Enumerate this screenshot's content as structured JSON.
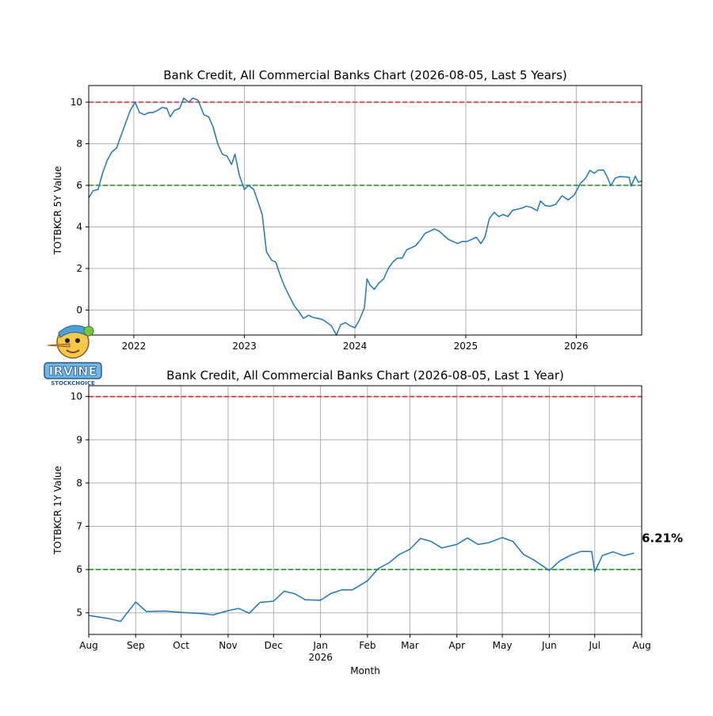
{
  "chart_data": [
    {
      "type": "line",
      "title": "Bank Credit, All Commercial Banks Chart (2026-08-05, Last 5 Years)",
      "xlabel": "",
      "ylabel": "TOTBKCR 5Y Value",
      "ylim": [
        -1.2,
        10.8
      ],
      "xlim": [
        "2021-08-05",
        "2026-08-05"
      ],
      "yticks": [
        0,
        2,
        4,
        6,
        8,
        10
      ],
      "xticks": [
        {
          "date": "2022-01-01",
          "label": "2022"
        },
        {
          "date": "2023-01-01",
          "label": "2023"
        },
        {
          "date": "2024-01-01",
          "label": "2024"
        },
        {
          "date": "2025-01-01",
          "label": "2025"
        },
        {
          "date": "2026-01-01",
          "label": "2026"
        }
      ],
      "grid": true,
      "reference_lines": [
        {
          "y": 10,
          "color": "#d62728",
          "style": "dashed"
        },
        {
          "y": 6,
          "color": "#2a8a2a",
          "style": "dashed"
        }
      ],
      "series": [
        {
          "color": "#1f77b4",
          "points": [
            [
              "2021-08-05",
              5.4
            ],
            [
              "2021-08-20",
              5.75
            ],
            [
              "2021-09-05",
              5.8
            ],
            [
              "2021-09-20",
              6.6
            ],
            [
              "2021-10-05",
              7.2
            ],
            [
              "2021-10-20",
              7.6
            ],
            [
              "2021-11-05",
              7.8
            ],
            [
              "2021-11-20",
              8.4
            ],
            [
              "2021-12-05",
              9.0
            ],
            [
              "2021-12-20",
              9.6
            ],
            [
              "2022-01-05",
              10.0
            ],
            [
              "2022-01-20",
              9.5
            ],
            [
              "2022-02-05",
              9.4
            ],
            [
              "2022-02-20",
              9.5
            ],
            [
              "2022-03-05",
              9.5
            ],
            [
              "2022-03-20",
              9.6
            ],
            [
              "2022-04-05",
              9.75
            ],
            [
              "2022-04-20",
              9.7
            ],
            [
              "2022-05-01",
              9.3
            ],
            [
              "2022-05-15",
              9.6
            ],
            [
              "2022-06-01",
              9.7
            ],
            [
              "2022-06-15",
              10.2
            ],
            [
              "2022-07-01",
              10.0
            ],
            [
              "2022-07-15",
              10.2
            ],
            [
              "2022-08-01",
              10.1
            ],
            [
              "2022-08-20",
              9.4
            ],
            [
              "2022-09-05",
              9.3
            ],
            [
              "2022-09-20",
              8.8
            ],
            [
              "2022-10-05",
              8.0
            ],
            [
              "2022-10-20",
              7.5
            ],
            [
              "2022-11-05",
              7.4
            ],
            [
              "2022-11-20",
              7.0
            ],
            [
              "2022-12-01",
              7.5
            ],
            [
              "2022-12-15",
              6.5
            ],
            [
              "2023-01-01",
              5.8
            ],
            [
              "2023-01-15",
              6.0
            ],
            [
              "2023-02-01",
              5.8
            ],
            [
              "2023-02-15",
              5.2
            ],
            [
              "2023-03-01",
              4.6
            ],
            [
              "2023-03-15",
              2.8
            ],
            [
              "2023-04-01",
              2.4
            ],
            [
              "2023-04-15",
              2.3
            ],
            [
              "2023-05-01",
              1.6
            ],
            [
              "2023-05-15",
              1.1
            ],
            [
              "2023-06-01",
              0.6
            ],
            [
              "2023-06-15",
              0.2
            ],
            [
              "2023-07-01",
              -0.1
            ],
            [
              "2023-07-15",
              -0.4
            ],
            [
              "2023-08-01",
              -0.25
            ],
            [
              "2023-08-15",
              -0.35
            ],
            [
              "2023-09-01",
              -0.4
            ],
            [
              "2023-09-15",
              -0.45
            ],
            [
              "2023-10-01",
              -0.6
            ],
            [
              "2023-10-15",
              -0.75
            ],
            [
              "2023-11-01",
              -1.2
            ],
            [
              "2023-11-15",
              -0.7
            ],
            [
              "2023-12-01",
              -0.6
            ],
            [
              "2023-12-15",
              -0.75
            ],
            [
              "2024-01-01",
              -0.85
            ],
            [
              "2024-01-15",
              -0.5
            ],
            [
              "2024-02-01",
              0.1
            ],
            [
              "2024-02-10",
              1.5
            ],
            [
              "2024-02-20",
              1.2
            ],
            [
              "2024-03-05",
              1.0
            ],
            [
              "2024-03-20",
              1.3
            ],
            [
              "2024-04-05",
              1.5
            ],
            [
              "2024-04-20",
              2.0
            ],
            [
              "2024-05-05",
              2.3
            ],
            [
              "2024-05-20",
              2.5
            ],
            [
              "2024-06-05",
              2.5
            ],
            [
              "2024-06-20",
              2.9
            ],
            [
              "2024-07-05",
              3.0
            ],
            [
              "2024-07-20",
              3.1
            ],
            [
              "2024-08-05",
              3.4
            ],
            [
              "2024-08-20",
              3.7
            ],
            [
              "2024-09-05",
              3.8
            ],
            [
              "2024-09-20",
              3.9
            ],
            [
              "2024-10-05",
              3.8
            ],
            [
              "2024-10-20",
              3.6
            ],
            [
              "2024-11-05",
              3.4
            ],
            [
              "2024-11-20",
              3.3
            ],
            [
              "2024-12-05",
              3.2
            ],
            [
              "2024-12-20",
              3.3
            ],
            [
              "2025-01-05",
              3.3
            ],
            [
              "2025-01-20",
              3.4
            ],
            [
              "2025-02-05",
              3.5
            ],
            [
              "2025-02-20",
              3.2
            ],
            [
              "2025-03-05",
              3.5
            ],
            [
              "2025-03-20",
              4.4
            ],
            [
              "2025-04-05",
              4.7
            ],
            [
              "2025-04-20",
              4.5
            ],
            [
              "2025-05-05",
              4.6
            ],
            [
              "2025-05-20",
              4.5
            ],
            [
              "2025-06-05",
              4.8
            ],
            [
              "2025-06-20",
              4.85
            ],
            [
              "2025-07-05",
              4.9
            ],
            [
              "2025-07-20",
              5.0
            ],
            [
              "2025-08-05",
              4.94
            ],
            [
              "2025-08-25",
              4.78
            ],
            [
              "2025-09-05",
              5.25
            ],
            [
              "2025-09-20",
              5.03
            ],
            [
              "2025-10-05",
              4.99
            ],
            [
              "2025-10-25",
              5.08
            ],
            [
              "2025-11-15",
              5.5
            ],
            [
              "2025-12-05",
              5.3
            ],
            [
              "2025-12-25",
              5.53
            ],
            [
              "2026-01-15",
              6.1
            ],
            [
              "2026-02-01",
              6.35
            ],
            [
              "2026-02-15",
              6.72
            ],
            [
              "2026-03-01",
              6.58
            ],
            [
              "2026-03-15",
              6.73
            ],
            [
              "2026-04-01",
              6.74
            ],
            [
              "2026-04-15",
              6.35
            ],
            [
              "2026-04-25",
              5.98
            ],
            [
              "2026-05-10",
              6.35
            ],
            [
              "2026-05-25",
              6.42
            ],
            [
              "2026-06-10",
              6.41
            ],
            [
              "2026-06-25",
              6.38
            ],
            [
              "2026-07-01",
              5.96
            ],
            [
              "2026-07-15",
              6.44
            ],
            [
              "2026-07-25",
              6.15
            ],
            [
              "2026-08-05",
              6.21
            ]
          ]
        }
      ]
    },
    {
      "type": "line",
      "title": "Bank Credit, All Commercial Banks Chart (2026-08-05, Last 1 Year)",
      "xlabel": "Month",
      "ylabel": "TOTBKCR 1Y Value",
      "ylim": [
        4.5,
        10.25
      ],
      "xlim": [
        "2025-08-01",
        "2026-08-01"
      ],
      "yticks": [
        5,
        6,
        7,
        8,
        9,
        10
      ],
      "xticks": [
        {
          "date": "2025-08-01",
          "label": "Aug"
        },
        {
          "date": "2025-09-01",
          "label": "Sep"
        },
        {
          "date": "2025-10-01",
          "label": "Oct"
        },
        {
          "date": "2025-11-01",
          "label": "Nov"
        },
        {
          "date": "2025-12-01",
          "label": "Dec"
        },
        {
          "date": "2026-01-01",
          "label": "Jan",
          "sublabel": "2026"
        },
        {
          "date": "2026-02-01",
          "label": "Feb"
        },
        {
          "date": "2026-03-01",
          "label": "Mar"
        },
        {
          "date": "2026-04-01",
          "label": "Apr"
        },
        {
          "date": "2026-05-01",
          "label": "May"
        },
        {
          "date": "2026-06-01",
          "label": "Jun"
        },
        {
          "date": "2026-07-01",
          "label": "Jul"
        },
        {
          "date": "2026-08-01",
          "label": "Aug"
        }
      ],
      "grid": true,
      "reference_lines": [
        {
          "y": 10,
          "color": "#d62728",
          "style": "dashed"
        },
        {
          "y": 6,
          "color": "#2a8a2a",
          "style": "dashed"
        }
      ],
      "end_annotation": "6.21%",
      "series": [
        {
          "color": "#1f77b4",
          "points": [
            [
              "2025-08-01",
              4.94
            ],
            [
              "2025-08-15",
              4.86
            ],
            [
              "2025-08-22",
              4.8
            ],
            [
              "2025-09-01",
              5.25
            ],
            [
              "2025-09-08",
              5.03
            ],
            [
              "2025-09-20",
              5.04
            ],
            [
              "2025-10-01",
              5.01
            ],
            [
              "2025-10-15",
              4.98
            ],
            [
              "2025-10-22",
              4.95
            ],
            [
              "2025-11-01",
              5.05
            ],
            [
              "2025-11-08",
              5.1
            ],
            [
              "2025-11-15",
              4.99
            ],
            [
              "2025-11-22",
              5.24
            ],
            [
              "2025-12-01",
              5.27
            ],
            [
              "2025-12-08",
              5.5
            ],
            [
              "2025-12-15",
              5.44
            ],
            [
              "2025-12-22",
              5.3
            ],
            [
              "2026-01-01",
              5.29
            ],
            [
              "2026-01-08",
              5.45
            ],
            [
              "2026-01-15",
              5.53
            ],
            [
              "2026-01-22",
              5.53
            ],
            [
              "2026-02-01",
              5.74
            ],
            [
              "2026-02-08",
              6.02
            ],
            [
              "2026-02-15",
              6.15
            ],
            [
              "2026-02-22",
              6.35
            ],
            [
              "2026-03-01",
              6.47
            ],
            [
              "2026-03-08",
              6.72
            ],
            [
              "2026-03-15",
              6.65
            ],
            [
              "2026-03-22",
              6.5
            ],
            [
              "2026-04-01",
              6.58
            ],
            [
              "2026-04-08",
              6.73
            ],
            [
              "2026-04-15",
              6.58
            ],
            [
              "2026-04-22",
              6.62
            ],
            [
              "2026-05-01",
              6.74
            ],
            [
              "2026-05-08",
              6.65
            ],
            [
              "2026-05-15",
              6.35
            ],
            [
              "2026-05-22",
              6.22
            ],
            [
              "2026-06-01",
              5.98
            ],
            [
              "2026-06-08",
              6.2
            ],
            [
              "2026-06-15",
              6.33
            ],
            [
              "2026-06-22",
              6.42
            ],
            [
              "2026-06-29",
              6.42
            ],
            [
              "2026-07-06",
              6.32
            ],
            [
              "2026-07-13",
              6.41
            ],
            [
              "2026-07-20",
              6.32
            ],
            [
              "2026-07-27",
              6.38
            ],
            [
              "2026-07-01",
              5.95
            ]
          ]
        }
      ]
    }
  ],
  "logo": {
    "text": "IRVINE",
    "subtext": "STOCKCHOICE"
  }
}
